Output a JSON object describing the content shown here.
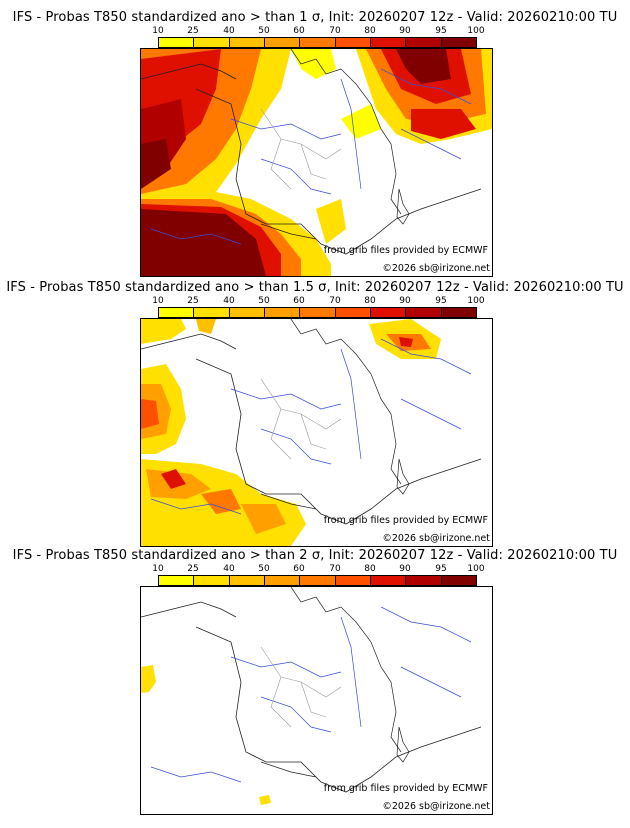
{
  "colorbar": {
    "ticks": [
      "10",
      "25",
      "40",
      "50",
      "60",
      "70",
      "80",
      "90",
      "95",
      "100"
    ],
    "colors": [
      "#ffff00",
      "#ffe000",
      "#ffc000",
      "#ffa000",
      "#ff7800",
      "#ff5000",
      "#e01000",
      "#b00000",
      "#800000"
    ]
  },
  "panels": [
    {
      "title": "IFS - Probas T850  standardized ano > than 1 σ, Init: 20260207 12z - Valid: 20260210:00 TU",
      "source_credit": "from grib files provided by ECMWF",
      "copyright": "©2026 sb@irizone.net"
    },
    {
      "title": "IFS - Probas T850  standardized ano > than 1.5 σ, Init: 20260207 12z - Valid: 20260210:00 TU",
      "source_credit": "from grib files provided by ECMWF",
      "copyright": "©2026 sb@irizone.net"
    },
    {
      "title": "IFS - Probas T850  standardized ano > than 2 σ, Init: 20260207 12z - Valid: 20260210:00 TU",
      "source_credit": "from grib files provided by ECMWF",
      "copyright": "©2026 sb@irizone.net"
    }
  ]
}
